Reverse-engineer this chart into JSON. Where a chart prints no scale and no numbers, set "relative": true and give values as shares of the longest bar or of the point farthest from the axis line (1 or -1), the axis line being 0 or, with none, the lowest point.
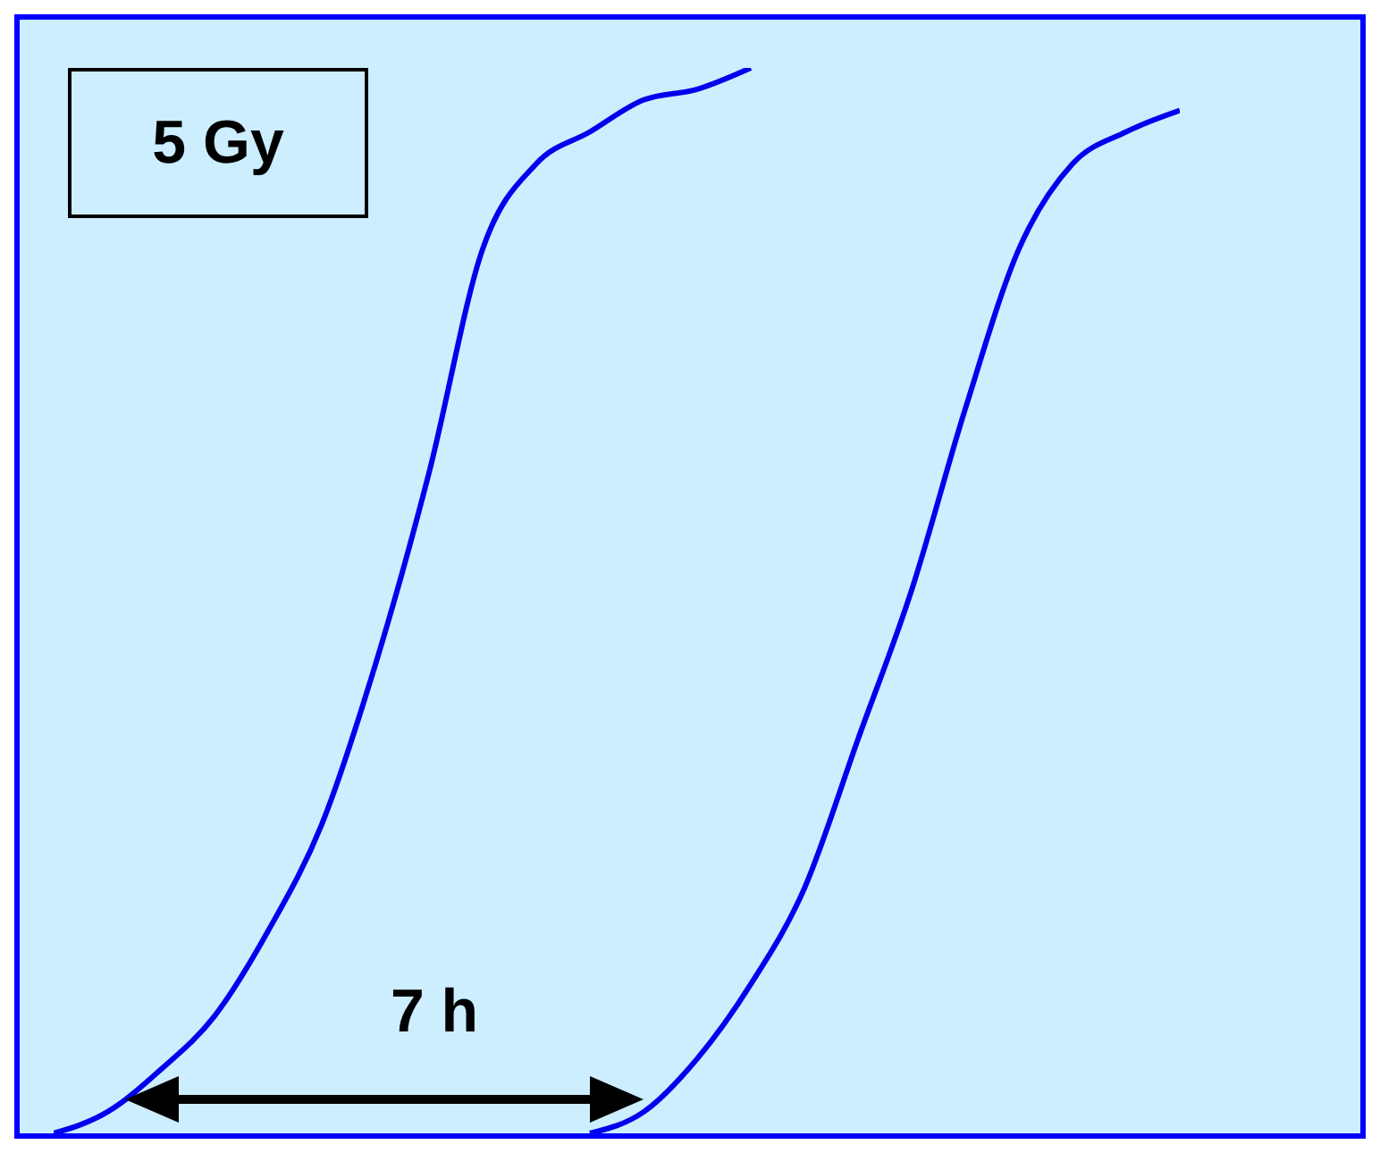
{
  "chart_data": {
    "type": "line",
    "relative": true,
    "marker": "none",
    "categories": [
      null,
      null,
      null,
      null,
      null,
      null,
      null,
      null,
      null,
      null,
      null,
      null,
      null,
      null,
      null,
      null,
      null,
      null,
      null,
      null,
      null,
      null
    ],
    "series": [
      {
        "color": "#0000ee",
        "values": [
          0,
          0.02,
          0.06,
          0.11,
          0.19,
          0.29,
          0.44,
          0.62,
          0.83,
          0.91,
          0.94,
          0.97,
          0.98,
          1,
          null,
          null,
          null,
          null,
          null,
          null,
          null,
          null
        ]
      },
      {
        "color": "#0000ee",
        "values": [
          null,
          null,
          null,
          null,
          null,
          null,
          null,
          null,
          null,
          null,
          0,
          0.02,
          0.07,
          0.14,
          0.23,
          0.37,
          0.51,
          0.68,
          0.83,
          0.91,
          0.94,
          0.96
        ]
      }
    ],
    "annotations": [
      "5 Gy",
      "7 h"
    ]
  }
}
